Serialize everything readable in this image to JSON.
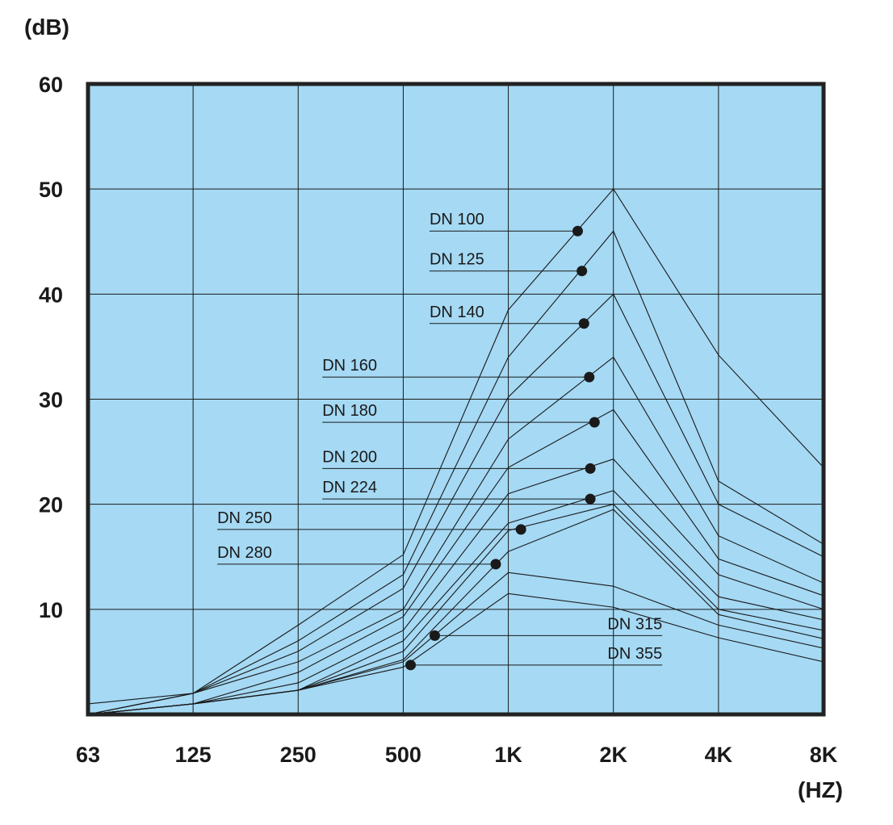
{
  "chart_data": {
    "type": "line",
    "ylabel": "(dB)",
    "xlabel": "(HZ)",
    "ylim": [
      0,
      60
    ],
    "grid": true,
    "background_color": "#a5d9f4",
    "line_color": "#1a1a1a",
    "categories": [
      "63",
      "125",
      "250",
      "500",
      "1K",
      "2K",
      "4K",
      "8K"
    ],
    "yticks": [
      "10",
      "20",
      "30",
      "40",
      "50",
      "60"
    ],
    "ytick_values": [
      10,
      20,
      30,
      40,
      50,
      60
    ],
    "series": [
      {
        "name": "DN 100",
        "values": [
          1.0,
          2.0,
          8.5,
          15.2,
          38.5,
          50.0,
          34.2,
          23.5
        ]
      },
      {
        "name": "DN 125",
        "values": [
          0.0,
          2.0,
          7.0,
          13.3,
          34.0,
          46.0,
          22.2,
          16.2
        ]
      },
      {
        "name": "DN 140",
        "values": [
          0.0,
          2.0,
          6.0,
          12.0,
          30.2,
          40.0,
          20.0,
          15.0
        ]
      },
      {
        "name": "DN 160",
        "values": [
          0.0,
          2.0,
          5.0,
          10.0,
          26.2,
          34.0,
          17.0,
          12.5
        ]
      },
      {
        "name": "DN 180",
        "values": [
          0.0,
          1.0,
          4.0,
          9.3,
          23.5,
          29.0,
          14.8,
          11.3
        ]
      },
      {
        "name": "DN 200",
        "values": [
          0.0,
          1.0,
          3.0,
          8.0,
          21.0,
          24.3,
          13.3,
          10.0
        ]
      },
      {
        "name": "DN 224",
        "values": [
          0.0,
          1.0,
          2.3,
          7.0,
          18.2,
          21.3,
          11.2,
          9.0
        ]
      },
      {
        "name": "DN 250",
        "values": [
          0.0,
          1.0,
          2.3,
          6.0,
          17.5,
          20.0,
          10.0,
          8.0
        ]
      },
      {
        "name": "DN 280",
        "values": [
          0.0,
          1.0,
          2.3,
          5.2,
          15.5,
          19.5,
          9.5,
          7.2
        ]
      },
      {
        "name": "DN 315",
        "values": [
          0.0,
          1.0,
          2.3,
          5.0,
          13.5,
          12.2,
          8.5,
          6.3
        ]
      },
      {
        "name": "DN 355",
        "values": [
          0.0,
          1.0,
          2.3,
          4.5,
          11.5,
          10.2,
          7.3,
          5.0
        ]
      }
    ],
    "annotations": [
      {
        "label": "DN 100",
        "dot": {
          "x": 4.66,
          "y": 46.0
        },
        "leader_y": 46.0,
        "text_from": 3.25,
        "text_y": 47.0,
        "side": "left"
      },
      {
        "label": "DN 125",
        "dot": {
          "x": 4.7,
          "y": 42.2
        },
        "leader_y": 42.2,
        "text_from": 3.25,
        "text_y": 43.2,
        "side": "left"
      },
      {
        "label": "DN 140",
        "dot": {
          "x": 4.72,
          "y": 37.2
        },
        "leader_y": 37.2,
        "text_from": 3.25,
        "text_y": 38.2,
        "side": "left"
      },
      {
        "label": "DN 160",
        "dot": {
          "x": 4.77,
          "y": 32.1
        },
        "leader_y": 32.1,
        "text_from": 2.23,
        "text_y": 33.1,
        "side": "left"
      },
      {
        "label": "DN 180",
        "dot": {
          "x": 4.82,
          "y": 27.8
        },
        "leader_y": 27.8,
        "text_from": 2.23,
        "text_y": 28.8,
        "side": "left"
      },
      {
        "label": "DN 200",
        "dot": {
          "x": 4.78,
          "y": 23.4
        },
        "leader_y": 23.4,
        "text_from": 2.23,
        "text_y": 24.4,
        "side": "left"
      },
      {
        "label": "DN 224",
        "dot": {
          "x": 4.78,
          "y": 20.5
        },
        "leader_y": 20.5,
        "text_from": 2.23,
        "text_y": 21.5,
        "side": "left"
      },
      {
        "label": "DN 250",
        "dot": {
          "x": 4.12,
          "y": 17.6
        },
        "leader_y": 17.6,
        "text_from": 1.23,
        "text_y": 18.6,
        "side": "left"
      },
      {
        "label": "DN 280",
        "dot": {
          "x": 3.88,
          "y": 14.3
        },
        "leader_y": 14.3,
        "text_from": 1.23,
        "text_y": 15.3,
        "side": "left"
      },
      {
        "label": "DN 315",
        "dot": {
          "x": 3.3,
          "y": 7.5
        },
        "leader_y": 7.5,
        "text_from": 4.85,
        "text_y": 8.5,
        "side": "right"
      },
      {
        "label": "DN 355",
        "dot": {
          "x": 3.07,
          "y": 4.7
        },
        "leader_y": 4.7,
        "text_from": 4.85,
        "text_y": 5.7,
        "side": "right"
      }
    ]
  }
}
